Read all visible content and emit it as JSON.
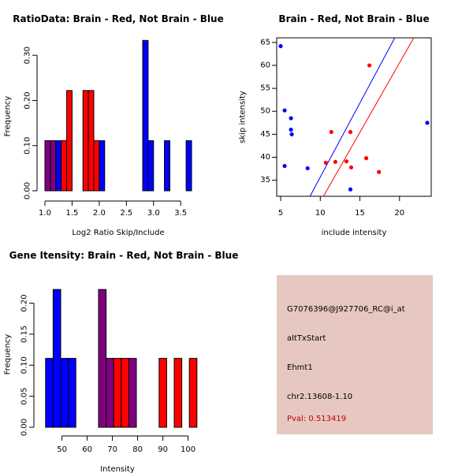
{
  "colors": {
    "brain": "#ff0000",
    "not_brain": "#0000ff",
    "overlap": "#800080",
    "info_background": "#e6c8c0",
    "pval_text": "#c00000"
  },
  "chart_data": [
    {
      "type": "bar",
      "title": "RatioData: Brain - Red, Not Brain - Blue",
      "xlabel": "Log2 Ratio Skip/Include",
      "ylabel": "Frequency",
      "xlim": [
        1.0,
        3.7
      ],
      "ylim": [
        0,
        0.33
      ],
      "xticks": [
        "1.0",
        "1.5",
        "2.0",
        "2.5",
        "3.0",
        "3.5"
      ],
      "yticks": [
        "0.00",
        "0.10",
        "0.20",
        "0.30"
      ],
      "bins": [
        {
          "x0": 1.0,
          "x1": 1.1,
          "value": 0.111,
          "group": "overlap"
        },
        {
          "x0": 1.1,
          "x1": 1.2,
          "value": 0.111,
          "group": "overlap"
        },
        {
          "x0": 1.2,
          "x1": 1.3,
          "value": 0.111,
          "group": "not_brain"
        },
        {
          "x0": 1.3,
          "x1": 1.4,
          "value": 0.111,
          "group": "brain"
        },
        {
          "x0": 1.4,
          "x1": 1.5,
          "value": 0.222,
          "group": "brain"
        },
        {
          "x0": 1.7,
          "x1": 1.8,
          "value": 0.222,
          "group": "brain"
        },
        {
          "x0": 1.8,
          "x1": 1.9,
          "value": 0.222,
          "group": "brain"
        },
        {
          "x0": 1.9,
          "x1": 2.0,
          "value": 0.111,
          "group": "brain"
        },
        {
          "x0": 2.0,
          "x1": 2.1,
          "value": 0.111,
          "group": "not_brain"
        },
        {
          "x0": 2.8,
          "x1": 2.9,
          "value": 0.333,
          "group": "not_brain"
        },
        {
          "x0": 2.9,
          "x1": 3.0,
          "value": 0.111,
          "group": "not_brain"
        },
        {
          "x0": 3.2,
          "x1": 3.3,
          "value": 0.111,
          "group": "not_brain"
        },
        {
          "x0": 3.6,
          "x1": 3.7,
          "value": 0.111,
          "group": "not_brain"
        }
      ]
    },
    {
      "type": "scatter",
      "title": "Brain - Red, Not Brain - Blue",
      "xlabel": "include intensity",
      "ylabel": "skip intensity",
      "xlim": [
        4.5,
        24
      ],
      "ylim": [
        31.5,
        66
      ],
      "xticks": [
        "5",
        "10",
        "15",
        "20"
      ],
      "yticks": [
        "35",
        "40",
        "45",
        "50",
        "55",
        "60",
        "65"
      ],
      "series": [
        {
          "name": "Brain",
          "color_key": "brain",
          "points": [
            [
              11.4,
              45.5
            ],
            [
              13.8,
              45.5
            ],
            [
              16.2,
              60.0
            ],
            [
              11.9,
              39.0
            ],
            [
              10.7,
              38.8
            ],
            [
              13.3,
              39.1
            ],
            [
              13.9,
              37.8
            ],
            [
              15.8,
              39.8
            ],
            [
              17.4,
              36.8
            ]
          ]
        },
        {
          "name": "Not Brain",
          "color_key": "not_brain",
          "points": [
            [
              5.0,
              64.2
            ],
            [
              5.5,
              50.2
            ],
            [
              6.3,
              48.5
            ],
            [
              6.3,
              46.0
            ],
            [
              6.4,
              45.0
            ],
            [
              5.5,
              38.1
            ],
            [
              8.4,
              37.6
            ],
            [
              13.8,
              33.0
            ],
            [
              23.5,
              47.5
            ]
          ]
        }
      ],
      "fit_lines": [
        {
          "name": "Not Brain fit",
          "color_key": "not_brain",
          "from": [
            8.7,
            31.5
          ],
          "to": [
            19.4,
            66
          ]
        },
        {
          "name": "Brain fit",
          "color_key": "brain",
          "from": [
            10.4,
            31.5
          ],
          "to": [
            21.8,
            66
          ]
        }
      ]
    },
    {
      "type": "bar",
      "title": "Gene Itensity: Brain - Red, Not Brain - Blue",
      "xlabel": "Intensity",
      "ylabel": "Frequency",
      "xlim": [
        42,
        102
      ],
      "ylim": [
        0,
        0.235
      ],
      "xticks": [
        "50",
        "60",
        "70",
        "80",
        "90",
        "100"
      ],
      "yticks": [
        "0.00",
        "0.05",
        "0.10",
        "0.15",
        "0.20"
      ],
      "bins": [
        {
          "x0": 43.5,
          "x1": 46.5,
          "value": 0.111,
          "group": "not_brain"
        },
        {
          "x0": 46.5,
          "x1": 49.5,
          "value": 0.222,
          "group": "not_brain"
        },
        {
          "x0": 49.5,
          "x1": 52.5,
          "value": 0.111,
          "group": "not_brain"
        },
        {
          "x0": 52.5,
          "x1": 55.5,
          "value": 0.111,
          "group": "not_brain"
        },
        {
          "x0": 64.5,
          "x1": 67.5,
          "value": 0.222,
          "group": "overlap"
        },
        {
          "x0": 67.5,
          "x1": 70.5,
          "value": 0.111,
          "group": "overlap"
        },
        {
          "x0": 70.5,
          "x1": 73.5,
          "value": 0.111,
          "group": "brain"
        },
        {
          "x0": 73.5,
          "x1": 76.5,
          "value": 0.111,
          "group": "brain"
        },
        {
          "x0": 76.5,
          "x1": 79.5,
          "value": 0.111,
          "group": "overlap"
        },
        {
          "x0": 88.5,
          "x1": 91.5,
          "value": 0.111,
          "group": "brain"
        },
        {
          "x0": 94.5,
          "x1": 97.5,
          "value": 0.111,
          "group": "brain"
        },
        {
          "x0": 100.5,
          "x1": 103.5,
          "value": 0.111,
          "group": "brain"
        }
      ]
    }
  ],
  "info_panel": {
    "probe_id": "G7076396@J927706_RC@i_at",
    "event_type": "altTxStart",
    "gene_symbol": "Ehmt1",
    "location": "chr2.13608-1.10",
    "pval": "Pval: 0.513419"
  }
}
